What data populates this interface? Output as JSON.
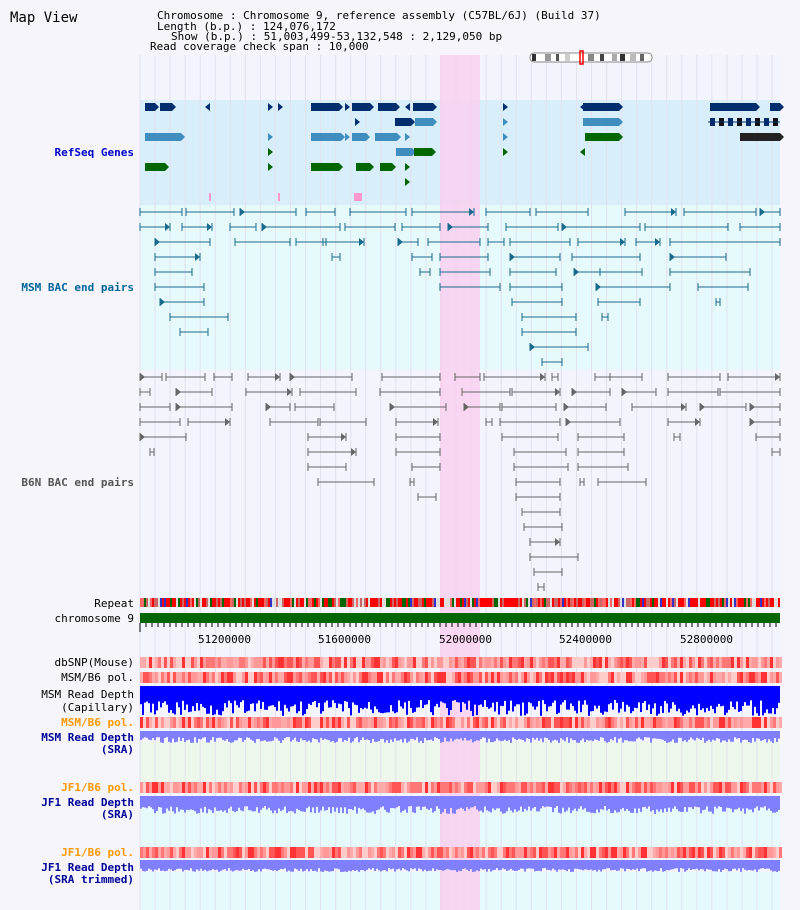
{
  "header": {
    "title": "Map View",
    "chromosome_label": "Chromosome",
    "chromosome_value": "Chromosome 9, reference assembly (C57BL/6J) (Build 37)",
    "length_label": "Length (b.p.)",
    "length_value": "124,076,172",
    "show_label": "Show (b.p.)",
    "show_value": "51,003,499-53,132,548 : 2,129,050 bp",
    "coverage_label": "Read coverage check span",
    "coverage_value": "10,000"
  },
  "tracks": {
    "refseq": "RefSeq Genes",
    "msm_bac": "MSM BAC end pairs",
    "b6n_bac": "B6N BAC end pairs",
    "repeat": "Repeat",
    "chromosome": "chromosome 9",
    "dbsnp": "dbSNP(Mouse)",
    "msm_b6_pol": "MSM/B6 pol.",
    "msm_read_depth_cap_1": "MSM Read Depth",
    "msm_read_depth_cap_2": "(Capillary)",
    "msm_b6_pol_2": "MSM/B6 pol.",
    "msm_read_depth_sra_1": "MSM Read Depth",
    "msm_read_depth_sra_2": "(SRA)",
    "jf1_b6_pol": "JF1/B6 pol.",
    "jf1_read_depth_sra_1": "JF1 Read Depth",
    "jf1_read_depth_sra_2": "(SRA)",
    "jf1_b6_pol_2": "JF1/B6 pol.",
    "jf1_read_depth_trim_1": "JF1 Read Depth",
    "jf1_read_depth_trim_2": "(SRA trimmed)"
  },
  "axis": {
    "ticks": [
      "51200000",
      "51600000",
      "52000000",
      "52400000",
      "52800000"
    ]
  },
  "colors": {
    "refseq_label": "#0000cc",
    "msm_label": "#006699",
    "b6n_label": "#555555",
    "orange_label": "#ff9900",
    "navy_label": "#000099",
    "highlight": "#f9d0f0",
    "gene_dark": "#002d6e",
    "gene_mid": "#3f8ebf",
    "gene_green": "#006600",
    "chrom_green": "#006600",
    "depth_blue": "#0000ff",
    "depth_lightblue": "#8080ff"
  }
}
